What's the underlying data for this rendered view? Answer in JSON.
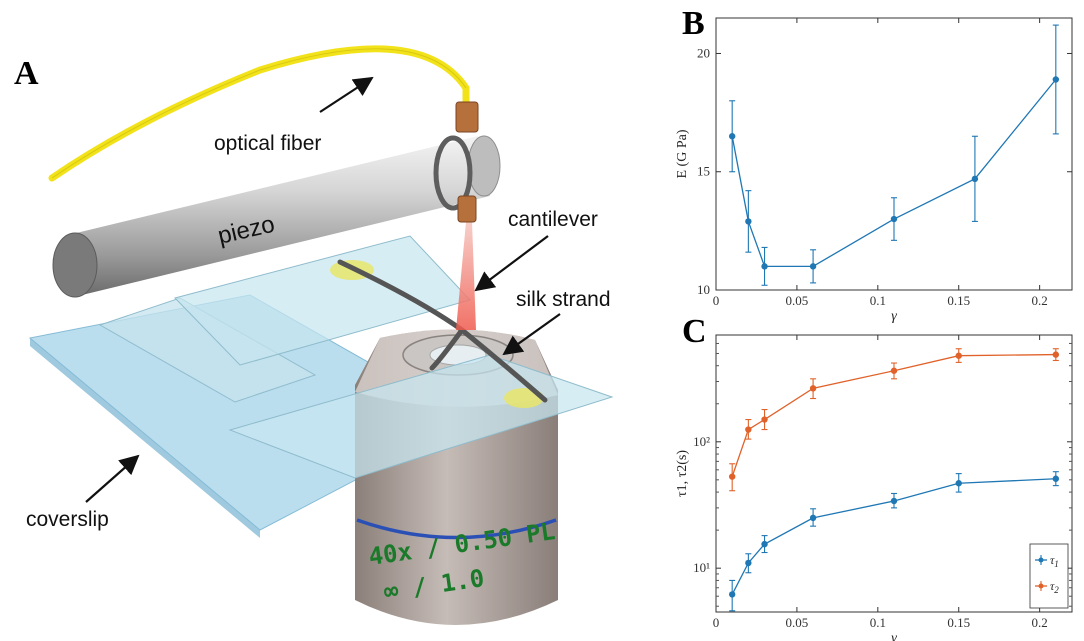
{
  "panels": {
    "a": "A",
    "b": "B",
    "c": "C"
  },
  "annotations": {
    "optical_fiber": "optical fiber",
    "piezo": "piezo",
    "cantilever": "cantilever",
    "silk_strand": "silk strand",
    "coverslip": "coverslip",
    "objective_line1": "40x / 0.50 PL",
    "objective_line2": "∞ / 1.0"
  },
  "colors": {
    "series1": "#1f77b4",
    "series2": "#e0622a",
    "fiber": "#f2e21a",
    "glass": "#a8d8ec"
  },
  "chart_data": [
    {
      "type": "line",
      "panel": "B",
      "xlabel": "γ",
      "ylabel": "E (G Pa)",
      "xlim": [
        0,
        0.22
      ],
      "ylim": [
        10,
        21.5
      ],
      "xticks": [
        0,
        0.05,
        0.1,
        0.15,
        0.2
      ],
      "xtick_labels": [
        "0",
        "0.05",
        "0.1",
        "0.15",
        "0.2"
      ],
      "yticks": [
        10,
        15,
        20
      ],
      "ytick_labels": [
        "10",
        "15",
        "20"
      ],
      "series": [
        {
          "color": "#1f77b4",
          "x": [
            0.01,
            0.02,
            0.03,
            0.06,
            0.11,
            0.16,
            0.21
          ],
          "y": [
            16.5,
            12.9,
            11.0,
            11.0,
            13.0,
            14.7,
            18.9
          ],
          "err": [
            1.5,
            1.3,
            0.8,
            0.7,
            0.9,
            1.8,
            2.3
          ]
        }
      ]
    },
    {
      "type": "line",
      "panel": "C",
      "xlabel": "γ",
      "ylabel": "τ1, τ2(s)",
      "yscale": "log",
      "xlim": [
        0,
        0.22
      ],
      "ylim": [
        4.5,
        700
      ],
      "xticks": [
        0,
        0.05,
        0.1,
        0.15,
        0.2
      ],
      "xtick_labels": [
        "0",
        "0.05",
        "0.1",
        "0.15",
        "0.2"
      ],
      "yticks": [
        10,
        100
      ],
      "ytick_labels": [
        "10¹",
        "10²"
      ],
      "legend": "bottom-right",
      "series": [
        {
          "name": "τ1",
          "color": "#1f77b4",
          "x": [
            0.01,
            0.02,
            0.03,
            0.06,
            0.11,
            0.15,
            0.21
          ],
          "y": [
            6.2,
            11,
            15.5,
            25,
            34,
            47,
            51
          ],
          "err_lo": [
            1.6,
            1.8,
            2.2,
            3.5,
            4,
            7,
            6
          ],
          "err_hi": [
            1.8,
            2.0,
            2.6,
            4.5,
            5,
            9,
            7
          ]
        },
        {
          "name": "τ2",
          "color": "#e0622a",
          "x": [
            0.01,
            0.02,
            0.03,
            0.06,
            0.11,
            0.15,
            0.21
          ],
          "y": [
            53,
            125,
            150,
            265,
            365,
            480,
            490
          ],
          "err_lo": [
            12,
            20,
            25,
            45,
            50,
            55,
            50
          ],
          "err_hi": [
            14,
            25,
            30,
            50,
            55,
            65,
            55
          ]
        }
      ]
    }
  ]
}
